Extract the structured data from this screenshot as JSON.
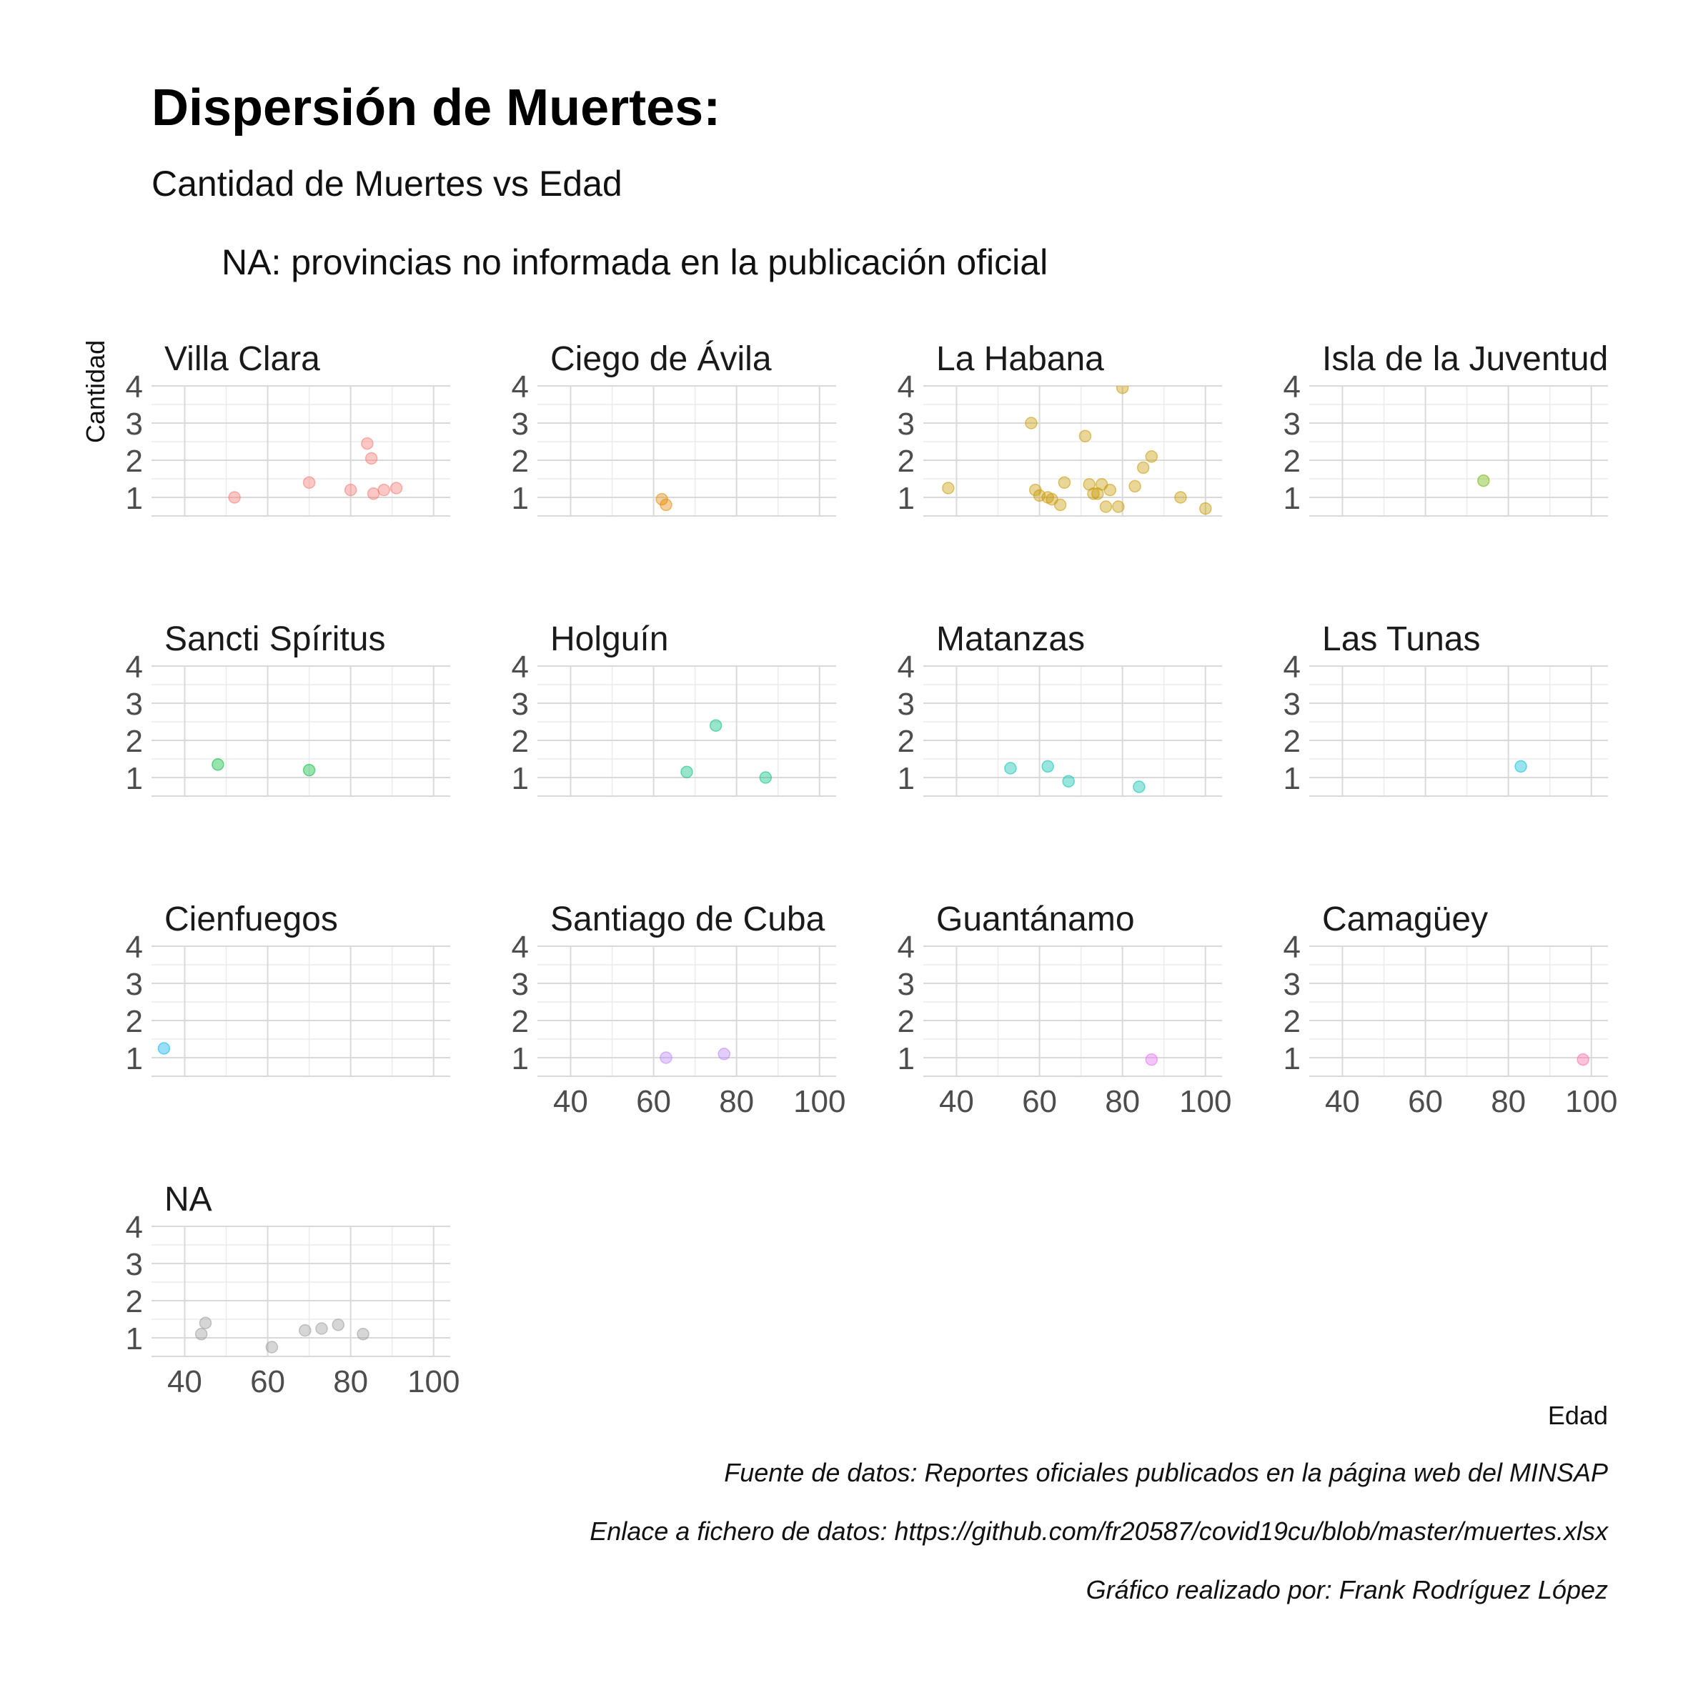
{
  "title": "Dispersión de Muertes:",
  "subtitle": "Cantidad de Muertes vs Edad",
  "note": "NA: provincias no informada en la publicación oficial",
  "captions": [
    "Fuente de datos: Reportes oficiales publicados en la página web del MINSAP",
    "Enlace a fichero de datos: https://github.com/fr20587/covid19cu/blob/master/muertes.xlsx",
    "Gráfico realizado por: Frank Rodríguez López"
  ],
  "chart_data": {
    "type": "scatter",
    "xlabel": "Edad",
    "ylabel": "Cantidad",
    "xlim": [
      32,
      104
    ],
    "ylim": [
      0.5,
      4
    ],
    "x_ticks": [
      40,
      60,
      80,
      100
    ],
    "y_ticks": [
      1,
      2,
      3,
      4
    ],
    "grid": true,
    "panels": [
      {
        "name": "Villa Clara",
        "color": "#F8766D",
        "points": [
          [
            52,
            1.0
          ],
          [
            70,
            1.4
          ],
          [
            80,
            1.2
          ],
          [
            84,
            2.45
          ],
          [
            85,
            2.05
          ],
          [
            85.5,
            1.1
          ],
          [
            88,
            1.2
          ],
          [
            91,
            1.25
          ]
        ]
      },
      {
        "name": "Ciego de Ávila",
        "color": "#E58700",
        "points": [
          [
            62,
            0.95
          ],
          [
            63,
            0.8
          ]
        ]
      },
      {
        "name": "La Habana",
        "color": "#C99800",
        "points": [
          [
            38,
            1.25
          ],
          [
            58,
            3.0
          ],
          [
            80,
            3.95
          ],
          [
            59,
            1.2
          ],
          [
            60,
            1.05
          ],
          [
            62,
            1.0
          ],
          [
            63,
            0.95
          ],
          [
            65,
            0.8
          ],
          [
            66,
            1.4
          ],
          [
            71,
            2.65
          ],
          [
            72,
            1.35
          ],
          [
            73,
            1.1
          ],
          [
            74,
            1.1
          ],
          [
            75,
            1.35
          ],
          [
            76,
            0.75
          ],
          [
            77,
            1.2
          ],
          [
            79,
            0.75
          ],
          [
            83,
            1.3
          ],
          [
            85,
            1.8
          ],
          [
            87,
            2.1
          ],
          [
            94,
            1.0
          ],
          [
            100,
            0.7
          ]
        ]
      },
      {
        "name": "Isla de la Juventud",
        "color": "#6BB100",
        "points": [
          [
            74,
            1.45
          ]
        ]
      },
      {
        "name": "Sancti Spíritus",
        "color": "#00BA38",
        "points": [
          [
            48,
            1.35
          ],
          [
            70,
            1.2
          ]
        ]
      },
      {
        "name": "Holguín",
        "color": "#00BF7D",
        "points": [
          [
            75,
            2.4
          ],
          [
            68,
            1.15
          ],
          [
            87,
            1.0
          ]
        ]
      },
      {
        "name": "Matanzas",
        "color": "#00C0AF",
        "points": [
          [
            53,
            1.25
          ],
          [
            62,
            1.3
          ],
          [
            67,
            0.9
          ],
          [
            84,
            0.75
          ]
        ]
      },
      {
        "name": "Las Tunas",
        "color": "#00BCD8",
        "points": [
          [
            83,
            1.3
          ]
        ]
      },
      {
        "name": "Cienfuegos",
        "color": "#00B0F6",
        "points": [
          [
            35,
            1.25
          ]
        ]
      },
      {
        "name": "Santiago de Cuba",
        "color": "#B983FF",
        "points": [
          [
            63,
            1.0
          ],
          [
            77,
            1.1
          ]
        ]
      },
      {
        "name": "Guantánamo",
        "color": "#E76BF3",
        "points": [
          [
            87,
            0.95
          ]
        ]
      },
      {
        "name": "Camagüey",
        "color": "#FF67A4",
        "points": [
          [
            98,
            0.95
          ]
        ]
      },
      {
        "name": "NA",
        "color": "#999999",
        "points": [
          [
            44,
            1.1
          ],
          [
            45,
            1.4
          ],
          [
            61,
            0.75
          ],
          [
            69,
            1.2
          ],
          [
            73,
            1.25
          ],
          [
            77,
            1.35
          ],
          [
            83,
            1.1
          ]
        ]
      }
    ]
  }
}
